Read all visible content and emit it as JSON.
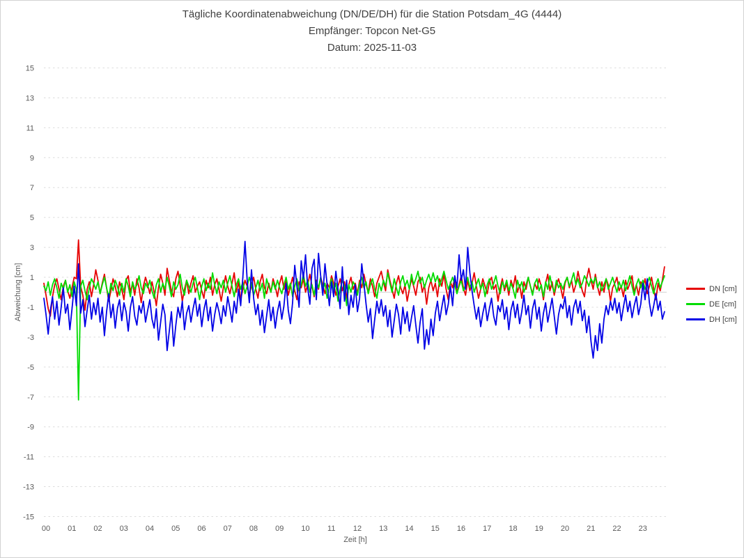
{
  "window": {
    "background": "#ffffff",
    "border_color": "#d2d2d2"
  },
  "colors": {
    "title_text": "#3f3f3f",
    "axis_text": "#595959",
    "gridline": "#dcdcdc",
    "zero_line": "#d9d9d9",
    "dn_red": "#e60000",
    "de_green": "#00dc00",
    "dh_blue": "#0000e6"
  },
  "chart_data": {
    "type": "line",
    "title": "Tägliche Koordinatenabweichung (DN/DE/DH) für die Station Potsdam_4G (4444)",
    "subtitle": "Empfänger: Topcon Net-G5",
    "date_line": "Datum: 2025-11-03",
    "xlabel": "Zeit [h]",
    "ylabel": "Abweichung [cm]",
    "ylim": [
      -15,
      15
    ],
    "yticks": [
      15,
      13,
      11,
      9,
      7,
      5,
      3,
      1,
      -1,
      -3,
      -5,
      -7,
      -9,
      -11,
      -13,
      -15
    ],
    "xtick_labels": [
      "00",
      "01",
      "02",
      "03",
      "04",
      "05",
      "06",
      "07",
      "08",
      "09",
      "10",
      "11",
      "12",
      "13",
      "14",
      "15",
      "16",
      "17",
      "18",
      "19",
      "20",
      "21",
      "22",
      "23"
    ],
    "x_start_hour": 0,
    "sample_interval_minutes": 5,
    "grid": "horizontal-dashed",
    "legend_position": "right",
    "series": [
      {
        "name": "DN",
        "label": "DN [cm]",
        "color": "#e60000",
        "values": [
          0.6,
          -0.2,
          -1.1,
          -1.6,
          -0.3,
          0.5,
          0.9,
          0.2,
          -0.5,
          0.4,
          0.8,
          0.1,
          -0.4,
          0.3,
          1.0,
          0.9,
          3.5,
          0.4,
          -0.2,
          -1.2,
          0.2,
          0.7,
          -0.3,
          0.5,
          1.5,
          0.8,
          -0.1,
          0.6,
          1.2,
          0.3,
          -0.6,
          0.1,
          0.9,
          0.4,
          -0.3,
          0.7,
          0.2,
          -0.5,
          0.8,
          1.1,
          0.0,
          0.6,
          -0.2,
          0.9,
          0.3,
          -0.7,
          0.4,
          1.0,
          0.5,
          -0.1,
          0.7,
          0.0,
          -0.9,
          0.3,
          1.2,
          0.6,
          -0.2,
          1.6,
          0.8,
          0.1,
          -0.3,
          0.9,
          1.4,
          0.5,
          -0.6,
          0.2,
          0.8,
          -0.1,
          0.6,
          1.1,
          0.0,
          0.4,
          0.7,
          0.1,
          -0.4,
          0.8,
          0.3,
          1.0,
          -0.2,
          0.5,
          0.9,
          0.2,
          -0.6,
          0.3,
          1.1,
          0.4,
          -0.1,
          0.6,
          1.3,
          0.0,
          0.7,
          -0.5,
          0.2,
          0.8,
          0.4,
          -0.2,
          0.5,
          1.0,
          0.2,
          -0.4,
          0.7,
          1.2,
          0.3,
          -0.1,
          0.6,
          0.0,
          0.9,
          0.4,
          -0.3,
          0.6,
          1.1,
          0.2,
          0.8,
          -0.2,
          0.4,
          1.0,
          0.1,
          -0.5,
          0.7,
          0.3,
          0.9,
          0.0,
          0.5,
          1.2,
          0.4,
          -0.3,
          0.8,
          0.2,
          1.0,
          0.5,
          -0.1,
          0.6,
          0.3,
          1.1,
          0.6,
          -0.2,
          0.4,
          0.9,
          0.1,
          0.7,
          -0.4,
          0.5,
          1.0,
          0.2,
          0.6,
          -0.1,
          0.8,
          0.3,
          1.2,
          0.5,
          0.0,
          0.9,
          0.4,
          -0.3,
          0.6,
          1.0,
          1.4,
          0.7,
          0.1,
          1.5,
          0.8,
          0.2,
          -0.4,
          0.6,
          1.1,
          0.3,
          -0.1,
          0.5,
          -0.6,
          0.2,
          0.9,
          0.4,
          -0.2,
          0.7,
          1.0,
          0.0,
          0.5,
          -0.8,
          0.3,
          0.8,
          0.1,
          0.6,
          -0.3,
          0.9,
          0.4,
          1.2,
          0.2,
          -0.5,
          0.7,
          0.3,
          1.0,
          0.0,
          0.5,
          1.1,
          0.3,
          -0.2,
          0.8,
          0.1,
          0.6,
          1.3,
          0.4,
          -0.4,
          0.2,
          0.9,
          0.4,
          -0.1,
          0.7,
          1.0,
          0.2,
          0.5,
          -0.6,
          0.3,
          0.9,
          0.1,
          0.6,
          -0.2,
          0.8,
          0.3,
          1.1,
          0.0,
          0.5,
          -0.4,
          0.7,
          0.2,
          1.0,
          0.4,
          -0.1,
          0.6,
          0.2,
          0.9,
          0.4,
          -0.5,
          0.6,
          1.2,
          0.1,
          0.7,
          -0.2,
          0.5,
          0.9,
          0.3,
          -0.4,
          0.6,
          1.0,
          0.3,
          0.8,
          0.0,
          0.5,
          1.4,
          0.7,
          0.1,
          -0.3,
          0.9,
          1.6,
          0.8,
          0.2,
          1.2,
          0.4,
          -0.2,
          0.7,
          0.0,
          0.9,
          0.5,
          -0.6,
          0.3,
          0.6,
          1.0,
          0.1,
          0.4,
          -0.3,
          0.8,
          0.2,
          0.6,
          1.1,
          0.0,
          0.5,
          -0.2,
          0.7,
          0.3,
          0.9,
          -0.1,
          0.4,
          1.0,
          0.2,
          -0.5,
          0.6,
          0.1,
          0.8,
          1.7
        ]
      },
      {
        "name": "DE",
        "label": "DE [cm]",
        "color": "#00dc00",
        "values": [
          0.4,
          0.1,
          0.7,
          -0.2,
          0.5,
          0.9,
          0.3,
          -0.4,
          0.6,
          0.2,
          0.8,
          0.0,
          0.5,
          -0.3,
          0.7,
          0.2,
          -7.2,
          0.4,
          0.8,
          0.1,
          -0.5,
          0.3,
          0.9,
          0.6,
          0.2,
          0.7,
          -0.1,
          0.5,
          1.0,
          0.3,
          -0.4,
          0.6,
          0.1,
          0.8,
          0.4,
          -0.2,
          0.6,
          0.0,
          0.9,
          0.4,
          -0.3,
          0.7,
          0.2,
          0.5,
          1.1,
          0.3,
          -0.1,
          0.6,
          0.3,
          0.8,
          0.1,
          -0.4,
          0.5,
          0.9,
          0.0,
          0.6,
          0.2,
          1.0,
          0.4,
          -0.3,
          0.7,
          0.2,
          0.5,
          1.2,
          0.3,
          -0.2,
          0.8,
          0.4,
          0.0,
          0.6,
          1.0,
          0.3,
          -0.5,
          0.4,
          0.9,
          0.1,
          0.6,
          0.2,
          1.3,
          0.5,
          -0.1,
          0.7,
          0.3,
          0.8,
          0.0,
          0.6,
          1.1,
          0.4,
          -0.3,
          0.5,
          0.9,
          0.2,
          0.7,
          -0.1,
          0.4,
          1.0,
          0.5,
          -0.2,
          0.3,
          0.8,
          0.1,
          0.6,
          -0.4,
          0.9,
          0.4,
          0.0,
          0.7,
          0.2,
          0.8,
          0.3,
          -0.1,
          0.5,
          1.0,
          0.2,
          0.6,
          -0.3,
          0.4,
          0.9,
          0.1,
          0.5,
          1.2,
          0.4,
          0.8,
          0.0,
          0.5,
          -0.2,
          0.7,
          0.3,
          1.0,
          0.2,
          0.6,
          -0.4,
          0.3,
          0.9,
          0.1,
          0.6,
          -0.6,
          0.2,
          0.8,
          0.4,
          -0.9,
          0.5,
          0.0,
          0.7,
          0.4,
          -0.2,
          0.6,
          1.0,
          0.3,
          0.7,
          -0.1,
          0.5,
          0.9,
          0.2,
          -0.4,
          0.6,
          0.1,
          0.8,
          0.4,
          1.3,
          0.6,
          0.0,
          0.9,
          0.3,
          -0.2,
          0.7,
          1.1,
          0.4,
          0.8,
          0.2,
          1.2,
          0.5,
          0.9,
          1.4,
          0.6,
          1.0,
          0.3,
          0.8,
          1.2,
          0.7,
          1.3,
          0.7,
          1.1,
          0.4,
          0.9,
          1.4,
          0.8,
          0.2,
          0.6,
          1.0,
          0.5,
          -0.1,
          0.4,
          0.8,
          0.1,
          0.5,
          1.0,
          0.3,
          0.7,
          0.0,
          0.5,
          0.9,
          0.2,
          0.6,
          -0.3,
          0.5,
          0.9,
          0.2,
          0.6,
          1.1,
          0.4,
          -0.1,
          0.7,
          0.3,
          0.8,
          0.1,
          0.6,
          0.2,
          -0.4,
          0.8,
          0.3,
          0.7,
          0.0,
          0.5,
          1.0,
          0.4,
          -0.2,
          0.6,
          0.9,
          0.1,
          0.5,
          -0.3,
          0.7,
          0.2,
          1.1,
          0.4,
          0.0,
          0.8,
          0.3,
          0.6,
          0.2,
          0.7,
          1.0,
          0.4,
          0.8,
          1.3,
          0.5,
          0.9,
          0.3,
          0.6,
          1.1,
          0.8,
          0.4,
          0.9,
          0.6,
          1.0,
          0.3,
          0.7,
          0.1,
          0.5,
          0.9,
          0.2,
          0.6,
          1.0,
          0.5,
          0.0,
          0.7,
          0.3,
          0.8,
          0.1,
          0.6,
          1.1,
          0.4,
          -0.2,
          0.5,
          0.9,
          0.3,
          0.8,
          0.2,
          0.6,
          1.0,
          0.4,
          -0.1,
          0.5,
          0.9,
          0.3,
          0.7,
          1.1
        ]
      },
      {
        "name": "DH",
        "label": "DH [cm]",
        "color": "#0000e6",
        "values": [
          -0.4,
          -1.5,
          -2.8,
          -1.2,
          -0.3,
          -1.8,
          -0.6,
          -2.2,
          -1.0,
          0.3,
          -1.4,
          -0.8,
          -2.5,
          -1.1,
          0.4,
          -0.9,
          1.9,
          -1.4,
          -0.5,
          -2.3,
          -1.2,
          -0.2,
          -1.8,
          -0.7,
          -1.5,
          -0.4,
          -2.0,
          -1.0,
          -2.9,
          -1.3,
          -0.1,
          -1.7,
          -0.8,
          -2.4,
          -1.1,
          -0.5,
          -1.9,
          -0.7,
          -1.3,
          -2.6,
          -1.0,
          -0.3,
          -1.6,
          -2.2,
          -0.9,
          -1.4,
          -0.6,
          -2.0,
          -1.2,
          -0.5,
          -1.8,
          -2.4,
          -1.1,
          -3.2,
          -2.0,
          -0.8,
          -1.5,
          -3.9,
          -2.6,
          -1.3,
          -3.6,
          -2.2,
          -1.0,
          -1.7,
          -0.6,
          -2.5,
          -1.4,
          -0.9,
          -2.0,
          -1.1,
          -0.4,
          -1.6,
          -0.8,
          -2.3,
          -1.2,
          -0.5,
          -1.9,
          -1.0,
          -2.6,
          -1.5,
          -0.7,
          -1.3,
          -2.1,
          -0.9,
          -1.6,
          -0.3,
          -1.1,
          -2.0,
          -0.6,
          -1.4,
          0.2,
          -0.9,
          1.0,
          3.4,
          0.8,
          -0.7,
          1.5,
          -0.4,
          -1.5,
          -0.8,
          -2.2,
          -1.2,
          -2.7,
          -1.6,
          -0.5,
          -1.9,
          -1.0,
          -2.4,
          -1.3,
          -0.6,
          -1.8,
          -0.9,
          0.6,
          -1.2,
          -2.1,
          -0.7,
          1.8,
          0.4,
          -1.0,
          2.1,
          0.9,
          2.5,
          0.3,
          -0.8,
          1.6,
          2.2,
          -0.5,
          2.6,
          1.1,
          -0.2,
          1.9,
          0.5,
          -0.9,
          0.7,
          -0.3,
          1.4,
          0.2,
          -1.1,
          1.7,
          -0.6,
          0.8,
          -1.5,
          -0.2,
          -1.0,
          0.5,
          -1.3,
          -0.4,
          1.9,
          0.6,
          -0.8,
          -2.0,
          -1.1,
          -3.1,
          -1.8,
          -0.6,
          -1.4,
          -0.5,
          -1.6,
          -0.9,
          -2.3,
          -1.2,
          -3.0,
          -1.9,
          -0.8,
          -1.5,
          -2.8,
          -1.0,
          -2.1,
          -1.3,
          -2.6,
          -1.7,
          -0.9,
          -2.2,
          -3.4,
          -2.0,
          -1.1,
          -3.8,
          -2.5,
          -3.5,
          -1.8,
          -2.9,
          -1.4,
          -0.6,
          -1.9,
          -1.0,
          -0.2,
          -1.5,
          -0.8,
          0.4,
          -0.9,
          1.1,
          0.3,
          2.5,
          0.8,
          1.5,
          0.2,
          3.0,
          1.3,
          0.1,
          -0.9,
          -1.8,
          -1.0,
          -2.3,
          -1.4,
          -0.7,
          -1.9,
          -1.1,
          -0.4,
          -1.6,
          -2.2,
          -0.9,
          -1.3,
          -0.5,
          -1.8,
          -1.0,
          -2.5,
          -1.2,
          -0.6,
          -1.7,
          -0.8,
          -2.1,
          -1.3,
          -0.2,
          -1.5,
          -0.9,
          -2.4,
          -1.1,
          -0.5,
          -1.8,
          -1.0,
          -2.6,
          -1.4,
          -0.7,
          -2.0,
          -1.2,
          -0.4,
          -1.6,
          -2.8,
          -1.5,
          -0.8,
          -1.1,
          -0.3,
          -1.7,
          -0.9,
          -2.2,
          -1.0,
          -0.5,
          -1.4,
          -0.6,
          -1.9,
          -1.2,
          -2.7,
          -1.6,
          -3.3,
          -4.4,
          -2.9,
          -3.9,
          -2.1,
          -3.4,
          -1.8,
          -0.9,
          -1.5,
          -0.6,
          -1.2,
          -0.4,
          -1.4,
          -0.7,
          -1.9,
          -1.0,
          -0.2,
          -1.3,
          -0.6,
          -1.7,
          -0.9,
          -0.3,
          -1.5,
          -0.8,
          0.6,
          -0.5,
          0.9,
          -0.7,
          -1.6,
          -0.9,
          -0.1,
          -1.2,
          -0.6,
          -1.8,
          -1.3
        ]
      }
    ]
  }
}
